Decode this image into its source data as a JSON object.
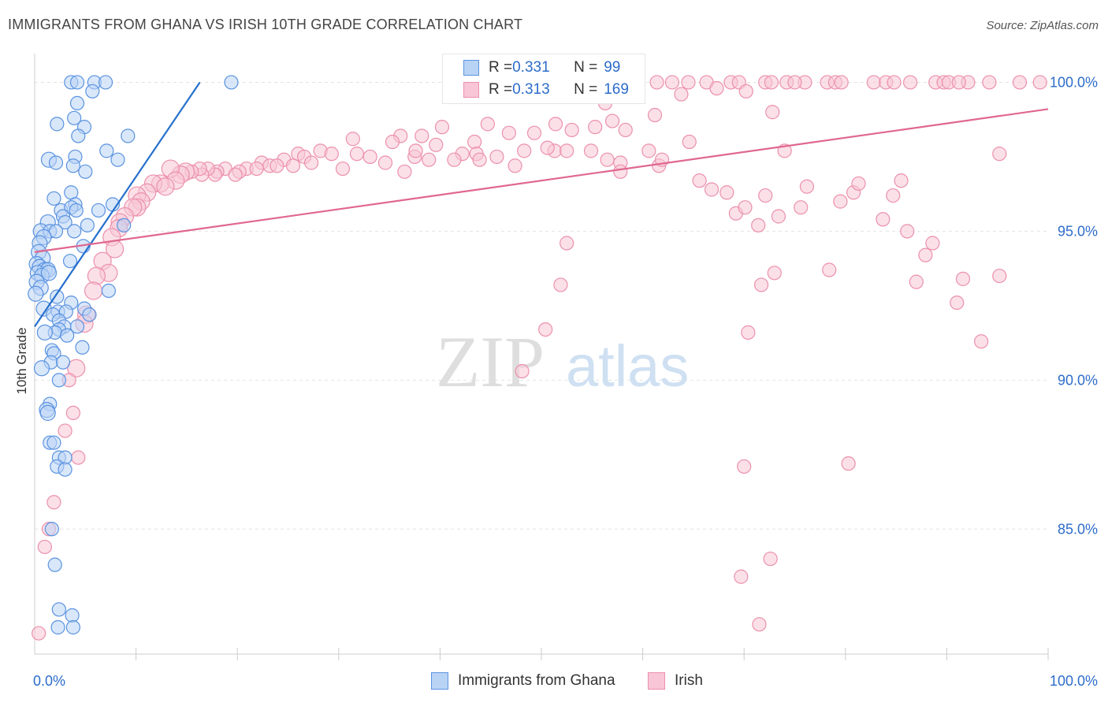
{
  "title": "IMMIGRANTS FROM GHANA VS IRISH 10TH GRADE CORRELATION CHART",
  "source": "Source: ZipAtlas.com",
  "watermark": {
    "zip": "ZIP",
    "atlas": "atlas"
  },
  "legend": {
    "r_label": "R = ",
    "n_label": "N = ",
    "ghana": {
      "r": "0.331",
      "n": "99"
    },
    "irish": {
      "r": "0.313",
      "n": "169"
    }
  },
  "colors": {
    "ghana_fill": "#b9d3f5",
    "ghana_stroke": "#5a93e0",
    "ghana_line": "#2670cc",
    "irish_fill": "#f8c6d6",
    "irish_stroke": "#ec90ad",
    "irish_line": "#e06790",
    "axis_label": "#2c6cc9",
    "grid": "#e2e2e2"
  },
  "chart_data": {
    "type": "scatter",
    "title": "IMMIGRANTS FROM GHANA VS IRISH 10TH GRADE CORRELATION CHART",
    "xlabel": "",
    "ylabel": "10th Grade",
    "xlim": [
      0,
      100
    ],
    "ylim": [
      80.8,
      100.7
    ],
    "x_tick_labels": [
      "0.0%",
      "100.0%"
    ],
    "y_ticks": [
      85,
      90,
      95,
      100
    ],
    "y_tick_labels": [
      "85.0%",
      "90.0%",
      "95.0%",
      "100.0%"
    ],
    "legend_position": "bottom",
    "series": [
      {
        "name": "Immigrants from Ghana",
        "r": 0.331,
        "n": 99,
        "trend": {
          "x": [
            0.0,
            16.3
          ],
          "y": [
            91.8,
            100.0
          ]
        },
        "points": [
          [
            3.6,
            100
          ],
          [
            4.2,
            100
          ],
          [
            5.9,
            100
          ],
          [
            7.0,
            100
          ],
          [
            19.4,
            100
          ],
          [
            5.7,
            99.7
          ],
          [
            4.2,
            99.3
          ],
          [
            3.9,
            98.8
          ],
          [
            2.2,
            98.6
          ],
          [
            4.9,
            98.5
          ],
          [
            4.3,
            98.2
          ],
          [
            9.2,
            98.2
          ],
          [
            7.1,
            97.7
          ],
          [
            1.4,
            97.4
          ],
          [
            8.2,
            97.4
          ],
          [
            4.0,
            97.5
          ],
          [
            2.1,
            97.3
          ],
          [
            3.8,
            97.2
          ],
          [
            5.0,
            97.0
          ],
          [
            3.6,
            96.3
          ],
          [
            1.9,
            96.1
          ],
          [
            2.6,
            95.7
          ],
          [
            4.0,
            95.9
          ],
          [
            7.7,
            95.9
          ],
          [
            3.6,
            95.8
          ],
          [
            6.3,
            95.7
          ],
          [
            4.1,
            95.7
          ],
          [
            2.8,
            95.5
          ],
          [
            1.3,
            95.3
          ],
          [
            3.0,
            95.3
          ],
          [
            5.2,
            95.2
          ],
          [
            8.8,
            95.2
          ],
          [
            0.6,
            95.0
          ],
          [
            1.5,
            95.0
          ],
          [
            2.1,
            95.0
          ],
          [
            3.9,
            95.0
          ],
          [
            0.9,
            94.8
          ],
          [
            0.5,
            94.6
          ],
          [
            4.8,
            94.5
          ],
          [
            0.4,
            94.3
          ],
          [
            0.8,
            94.1
          ],
          [
            3.5,
            94.0
          ],
          [
            0.2,
            93.9
          ],
          [
            0.5,
            93.8
          ],
          [
            1.0,
            93.7
          ],
          [
            1.3,
            93.7
          ],
          [
            0.3,
            93.6
          ],
          [
            0.7,
            93.5
          ],
          [
            1.4,
            93.6
          ],
          [
            0.2,
            93.3
          ],
          [
            0.6,
            93.1
          ],
          [
            0.1,
            92.9
          ],
          [
            7.3,
            93.0
          ],
          [
            2.2,
            92.8
          ],
          [
            3.6,
            92.6
          ],
          [
            0.9,
            92.4
          ],
          [
            2.3,
            92.3
          ],
          [
            4.9,
            92.4
          ],
          [
            3.1,
            92.3
          ],
          [
            1.8,
            92.2
          ],
          [
            5.4,
            92.2
          ],
          [
            2.4,
            92.0
          ],
          [
            4.2,
            91.8
          ],
          [
            2.9,
            91.8
          ],
          [
            2.4,
            91.7
          ],
          [
            2.0,
            91.6
          ],
          [
            1.0,
            91.6
          ],
          [
            3.2,
            91.5
          ],
          [
            4.7,
            91.1
          ],
          [
            1.7,
            91.0
          ],
          [
            1.9,
            90.9
          ],
          [
            1.6,
            90.6
          ],
          [
            2.8,
            90.6
          ],
          [
            0.7,
            90.4
          ],
          [
            2.4,
            90.0
          ],
          [
            1.5,
            89.2
          ],
          [
            1.2,
            89.0
          ],
          [
            1.3,
            88.9
          ],
          [
            1.5,
            87.9
          ],
          [
            1.9,
            87.9
          ],
          [
            2.4,
            87.4
          ],
          [
            3.0,
            87.4
          ],
          [
            2.2,
            87.1
          ],
          [
            3.0,
            87.0
          ],
          [
            1.7,
            85.0
          ],
          [
            2.0,
            83.8
          ],
          [
            2.4,
            82.3
          ],
          [
            3.7,
            82.1
          ],
          [
            2.3,
            81.7
          ],
          [
            3.8,
            81.7
          ]
        ]
      },
      {
        "name": "Irish",
        "r": 0.313,
        "n": 169,
        "trend": {
          "x": [
            0.0,
            100.0
          ],
          "y": [
            94.3,
            99.1
          ]
        },
        "points": [
          [
            59.4,
            100
          ],
          [
            61.4,
            100
          ],
          [
            62.9,
            100
          ],
          [
            64.5,
            100
          ],
          [
            66.3,
            100
          ],
          [
            68.7,
            100
          ],
          [
            69.5,
            100
          ],
          [
            72.1,
            100
          ],
          [
            72.7,
            100
          ],
          [
            74.2,
            100
          ],
          [
            76.0,
            100
          ],
          [
            78.2,
            100
          ],
          [
            79.0,
            100
          ],
          [
            79.6,
            100
          ],
          [
            82.8,
            100
          ],
          [
            84.0,
            100
          ],
          [
            84.8,
            100
          ],
          [
            86.4,
            100
          ],
          [
            88.9,
            100
          ],
          [
            89.7,
            100
          ],
          [
            90.2,
            100
          ],
          [
            92.1,
            100
          ],
          [
            94.2,
            100
          ],
          [
            97.2,
            100
          ],
          [
            99.2,
            100
          ],
          [
            75.0,
            100
          ],
          [
            91.2,
            100
          ],
          [
            63.8,
            99.6
          ],
          [
            67.3,
            99.8
          ],
          [
            70.2,
            99.7
          ],
          [
            56.3,
            99.3
          ],
          [
            72.8,
            99.0
          ],
          [
            61.2,
            98.9
          ],
          [
            57.0,
            98.7
          ],
          [
            51.4,
            98.6
          ],
          [
            40.2,
            98.5
          ],
          [
            44.7,
            98.6
          ],
          [
            53.0,
            98.4
          ],
          [
            55.3,
            98.5
          ],
          [
            58.3,
            98.4
          ],
          [
            64.6,
            98.0
          ],
          [
            74.0,
            97.7
          ],
          [
            95.2,
            97.6
          ],
          [
            36.1,
            98.2
          ],
          [
            38.2,
            98.2
          ],
          [
            43.4,
            98.0
          ],
          [
            46.8,
            98.3
          ],
          [
            49.3,
            98.3
          ],
          [
            31.4,
            98.1
          ],
          [
            35.3,
            98.0
          ],
          [
            39.6,
            97.9
          ],
          [
            28.2,
            97.7
          ],
          [
            31.8,
            97.6
          ],
          [
            37.5,
            97.5
          ],
          [
            42.2,
            97.6
          ],
          [
            45.6,
            97.5
          ],
          [
            48.3,
            97.7
          ],
          [
            51.3,
            97.7
          ],
          [
            26.0,
            97.6
          ],
          [
            26.6,
            97.5
          ],
          [
            29.3,
            97.6
          ],
          [
            33.1,
            97.5
          ],
          [
            37.6,
            97.7
          ],
          [
            41.4,
            97.4
          ],
          [
            43.6,
            97.6
          ],
          [
            50.6,
            97.8
          ],
          [
            52.5,
            97.7
          ],
          [
            54.9,
            97.7
          ],
          [
            57.8,
            97.3
          ],
          [
            61.6,
            97.2
          ],
          [
            24.6,
            97.4
          ],
          [
            25.5,
            97.2
          ],
          [
            27.3,
            97.3
          ],
          [
            30.4,
            97.1
          ],
          [
            34.6,
            97.3
          ],
          [
            36.5,
            97.0
          ],
          [
            38.9,
            97.4
          ],
          [
            43.9,
            97.4
          ],
          [
            47.4,
            97.2
          ],
          [
            22.4,
            97.3
          ],
          [
            23.2,
            97.2
          ],
          [
            23.9,
            97.2
          ],
          [
            20.9,
            97.1
          ],
          [
            21.9,
            97.1
          ],
          [
            20.2,
            97.0
          ],
          [
            18.8,
            97.1
          ],
          [
            19.8,
            96.9
          ],
          [
            18.0,
            97.0
          ],
          [
            17.8,
            96.9
          ],
          [
            17.1,
            97.1
          ],
          [
            16.5,
            96.9
          ],
          [
            16.3,
            97.1
          ],
          [
            15.5,
            97.0
          ],
          [
            14.9,
            97.0
          ],
          [
            14.4,
            96.9
          ],
          [
            13.4,
            97.1
          ],
          [
            13.9,
            96.7
          ],
          [
            12.4,
            96.6
          ],
          [
            11.7,
            96.6
          ],
          [
            12.9,
            96.5
          ],
          [
            11.1,
            96.3
          ],
          [
            10.1,
            96.2
          ],
          [
            10.5,
            96.0
          ],
          [
            10.1,
            95.8
          ],
          [
            9.7,
            95.8
          ],
          [
            8.9,
            95.5
          ],
          [
            8.4,
            95.3
          ],
          [
            8.3,
            95.1
          ],
          [
            7.6,
            94.8
          ],
          [
            7.9,
            94.4
          ],
          [
            6.7,
            94.0
          ],
          [
            7.3,
            93.6
          ],
          [
            6.1,
            93.5
          ],
          [
            5.8,
            93.0
          ],
          [
            5.1,
            92.2
          ],
          [
            4.9,
            91.9
          ],
          [
            4.1,
            90.4
          ],
          [
            3.4,
            90.0
          ],
          [
            3.8,
            88.9
          ],
          [
            3.0,
            88.3
          ],
          [
            4.3,
            87.4
          ],
          [
            1.9,
            85.9
          ],
          [
            1.4,
            85.0
          ],
          [
            1.0,
            84.4
          ],
          [
            0.4,
            81.5
          ],
          [
            56.5,
            97.4
          ],
          [
            57.8,
            97.0
          ],
          [
            60.6,
            97.7
          ],
          [
            61.9,
            97.4
          ],
          [
            65.6,
            96.7
          ],
          [
            66.8,
            96.4
          ],
          [
            68.3,
            96.3
          ],
          [
            69.2,
            95.6
          ],
          [
            70.1,
            95.8
          ],
          [
            71.4,
            95.2
          ],
          [
            72.1,
            96.2
          ],
          [
            73.4,
            95.5
          ],
          [
            75.6,
            95.8
          ],
          [
            76.2,
            96.5
          ],
          [
            79.5,
            96.0
          ],
          [
            80.8,
            96.3
          ],
          [
            81.3,
            96.6
          ],
          [
            83.7,
            95.4
          ],
          [
            84.7,
            96.2
          ],
          [
            85.5,
            96.7
          ],
          [
            86.1,
            95.0
          ],
          [
            87.0,
            93.3
          ],
          [
            87.9,
            94.2
          ],
          [
            88.6,
            94.6
          ],
          [
            91.6,
            93.4
          ],
          [
            91.0,
            92.6
          ],
          [
            93.4,
            91.3
          ],
          [
            95.2,
            93.5
          ],
          [
            71.7,
            93.2
          ],
          [
            78.4,
            93.7
          ],
          [
            73.0,
            93.6
          ],
          [
            70.4,
            91.6
          ],
          [
            52.5,
            94.6
          ],
          [
            51.9,
            93.2
          ],
          [
            48.1,
            90.3
          ],
          [
            50.4,
            91.7
          ],
          [
            70.0,
            87.1
          ],
          [
            80.3,
            87.2
          ],
          [
            69.7,
            83.4
          ],
          [
            72.6,
            84.0
          ],
          [
            71.5,
            81.8
          ]
        ]
      }
    ]
  }
}
